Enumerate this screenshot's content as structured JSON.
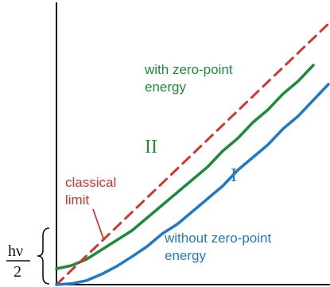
{
  "chart_data": {
    "type": "line",
    "title": "",
    "xlabel": "",
    "ylabel": "",
    "y_offset_label": {
      "numerator": "hν",
      "denominator": "2"
    },
    "series": [
      {
        "key": "green",
        "name": "with zero-point energy",
        "roman": "II",
        "color": "#1e8a3c",
        "style": "solid",
        "points": [
          [
            0,
            0.5
          ],
          [
            0.5,
            0.6
          ],
          [
            1,
            0.8
          ],
          [
            1.5,
            1.1
          ],
          [
            2,
            1.4
          ],
          [
            2.5,
            1.7
          ],
          [
            3,
            2.1
          ],
          [
            3.5,
            2.5
          ],
          [
            4,
            2.9
          ],
          [
            4.5,
            3.3
          ],
          [
            5,
            3.7
          ],
          [
            5.5,
            4.2
          ],
          [
            6,
            4.6
          ],
          [
            6.5,
            5.1
          ],
          [
            7,
            5.5
          ],
          [
            7.5,
            6.0
          ],
          [
            8,
            6.4
          ],
          [
            8.5,
            6.9
          ]
        ]
      },
      {
        "key": "red",
        "name": "classical limit",
        "color": "#d8342c",
        "style": "dashed",
        "points": [
          [
            0,
            0
          ],
          [
            9,
            8.2
          ]
        ]
      },
      {
        "key": "blue",
        "name": "without zero-point energy",
        "roman": "I",
        "color": "#1f78c8",
        "style": "solid",
        "points": [
          [
            0,
            0
          ],
          [
            0.5,
            0.03
          ],
          [
            1,
            0.13
          ],
          [
            1.5,
            0.33
          ],
          [
            2,
            0.58
          ],
          [
            2.5,
            0.88
          ],
          [
            3,
            1.2
          ],
          [
            3.5,
            1.6
          ],
          [
            4,
            1.9
          ],
          [
            4.5,
            2.3
          ],
          [
            5,
            2.7
          ],
          [
            5.5,
            3.1
          ],
          [
            6,
            3.6
          ],
          [
            6.5,
            4.0
          ],
          [
            7,
            4.4
          ],
          [
            7.5,
            4.9
          ],
          [
            8,
            5.3
          ],
          [
            8.5,
            5.8
          ],
          [
            9,
            6.3
          ]
        ]
      }
    ],
    "labels": {
      "green_text": [
        "with zero-point",
        "energy"
      ],
      "red_text": [
        "classical",
        "limit"
      ],
      "blue_text": [
        "without zero-point",
        "energy"
      ]
    }
  }
}
